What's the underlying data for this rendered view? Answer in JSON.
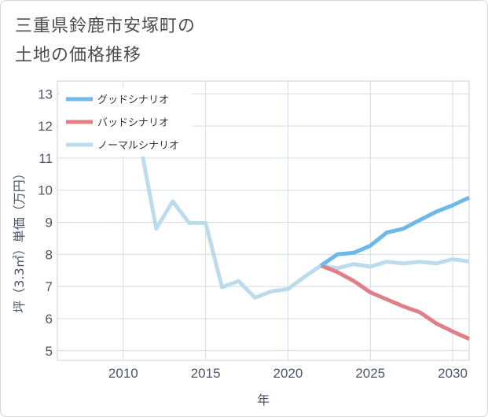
{
  "chart_data": {
    "type": "line",
    "title": {
      "line1": "三重県鈴鹿市安塚町の",
      "line2": "土地の価格推移"
    },
    "xlabel": "年",
    "ylabel": "坪（3.3㎡）単価（万円）",
    "xlim": [
      2006,
      2031
    ],
    "ylim": [
      4.7,
      13.4
    ],
    "xticks": [
      2010,
      2015,
      2020,
      2025,
      2030
    ],
    "yticks": [
      5,
      6,
      7,
      8,
      9,
      10,
      11,
      12,
      13
    ],
    "grid": true,
    "legend_position": "top-left",
    "series": [
      {
        "name": "グッドシナリオ",
        "color": "#6cb8ea",
        "x": [
          2022,
          2023,
          2024,
          2025,
          2026,
          2027,
          2028,
          2029,
          2030,
          2031
        ],
        "values": [
          7.65,
          8.0,
          8.05,
          8.27,
          8.68,
          8.8,
          9.07,
          9.33,
          9.53,
          9.77
        ]
      },
      {
        "name": "バッドシナリオ",
        "color": "#e07f88",
        "x": [
          2022,
          2023,
          2024,
          2025,
          2026,
          2027,
          2028,
          2029,
          2030,
          2031
        ],
        "values": [
          7.65,
          7.45,
          7.17,
          6.82,
          6.6,
          6.38,
          6.2,
          5.85,
          5.6,
          5.37
        ]
      },
      {
        "name": "ノーマルシナリオ",
        "color": "#bcdcec",
        "x": [
          2008,
          2009,
          2010,
          2011,
          2012,
          2013,
          2014,
          2015,
          2016,
          2017,
          2018,
          2019,
          2020,
          2021,
          2022,
          2023,
          2024,
          2025,
          2026,
          2027,
          2028,
          2029,
          2030,
          2031
        ],
        "values": [
          12.6,
          11.83,
          11.83,
          11.55,
          8.8,
          9.65,
          8.98,
          8.98,
          6.98,
          7.17,
          6.65,
          6.85,
          6.92,
          7.3,
          7.65,
          7.57,
          7.7,
          7.62,
          7.77,
          7.72,
          7.77,
          7.72,
          7.85,
          7.78
        ]
      }
    ]
  }
}
